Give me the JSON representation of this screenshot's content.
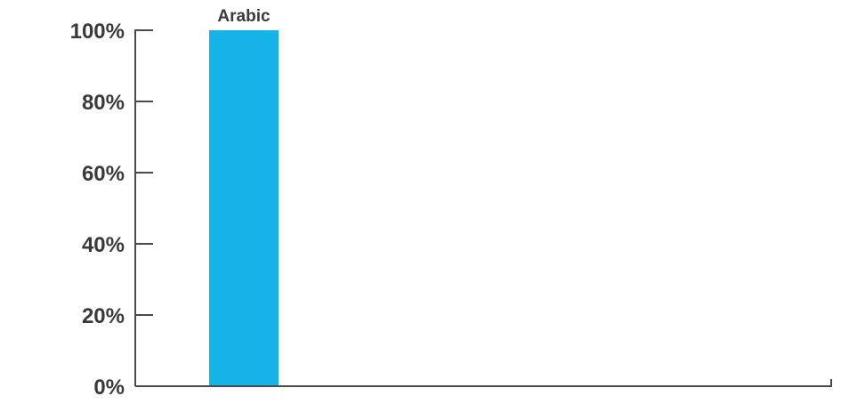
{
  "chart_data": {
    "type": "bar",
    "title": "",
    "xlabel": "",
    "ylabel": "",
    "categories": [
      "Arabic"
    ],
    "values": [
      100
    ],
    "ylim": [
      0,
      100
    ],
    "yticks": [
      0,
      20,
      40,
      60,
      80,
      100
    ],
    "ytick_labels": [
      "0%",
      "20%",
      "40%",
      "60%",
      "80%",
      "100%"
    ],
    "grid": false,
    "legend": "none",
    "bar_color": "#16b3e8",
    "axis_color": "#4a4a4a",
    "text_color": "#3a3a3a"
  }
}
